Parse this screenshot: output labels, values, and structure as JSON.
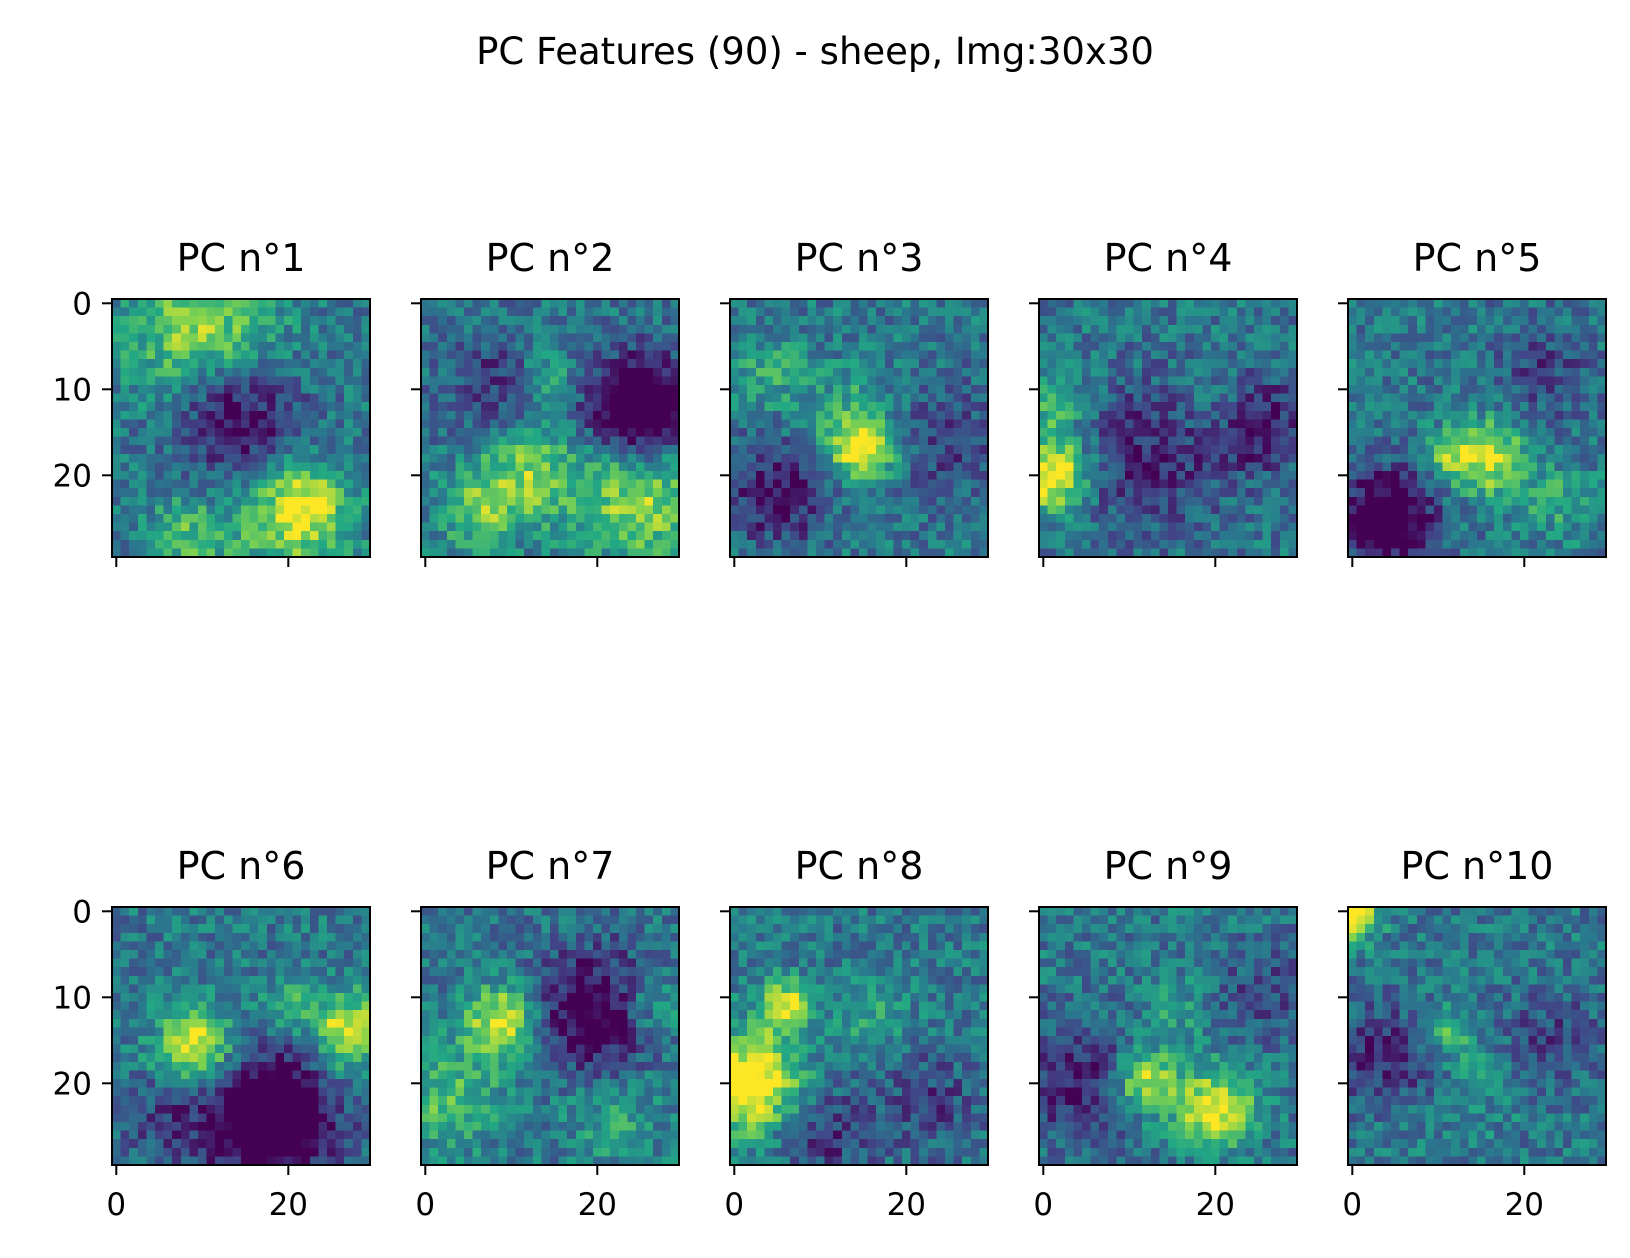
{
  "chart_data": {
    "type": "heatmap",
    "title": "PC Features (90) - sheep, Img:30x30",
    "grid": false,
    "colormap": "viridis",
    "colormap_stops": [
      "#440154",
      "#414487",
      "#2a788e",
      "#22a884",
      "#7ad151",
      "#fde725"
    ],
    "image_size": [
      30,
      30
    ],
    "layout": {
      "rows": 2,
      "cols": 5,
      "sharex": true,
      "sharey": true
    },
    "xlim": [
      -0.5,
      29.5
    ],
    "ylim": [
      29.5,
      -0.5
    ],
    "xticks": [
      0,
      20
    ],
    "yticks": [
      0,
      10,
      20
    ],
    "xtick_labels": [
      "0",
      "20"
    ],
    "ytick_labels": [
      "0",
      "10",
      "20"
    ],
    "panels": [
      {
        "title": "PC n°1",
        "blobs": [
          [
            10,
            3,
            6,
            0.45
          ],
          [
            14,
            13,
            5,
            -0.45
          ],
          [
            20,
            26,
            5,
            0.35
          ],
          [
            22,
            23,
            3,
            0.35
          ],
          [
            8,
            27,
            3,
            0.3
          ]
        ]
      },
      {
        "title": "PC n°2",
        "blobs": [
          [
            25,
            12,
            4,
            -0.8
          ],
          [
            25,
            23,
            5,
            0.45
          ],
          [
            12,
            20,
            4,
            0.4
          ],
          [
            6,
            24,
            3,
            0.35
          ],
          [
            14,
            9,
            2,
            0.3
          ],
          [
            8,
            10,
            4,
            -0.25
          ]
        ]
      },
      {
        "title": "PC n°3",
        "blobs": [
          [
            15,
            17,
            2.5,
            0.65
          ],
          [
            14,
            13,
            4,
            0.2
          ],
          [
            5,
            22,
            4,
            -0.4
          ],
          [
            24,
            16,
            5,
            -0.2
          ],
          [
            4,
            8,
            3,
            0.2
          ]
        ]
      },
      {
        "title": "PC n°4",
        "blobs": [
          [
            1,
            20,
            3,
            0.7
          ],
          [
            1,
            12,
            3,
            0.25
          ],
          [
            12,
            18,
            6,
            -0.3
          ],
          [
            25,
            14,
            4,
            -0.35
          ],
          [
            20,
            12,
            3,
            0.15
          ]
        ]
      },
      {
        "title": "PC n°5",
        "blobs": [
          [
            4,
            25,
            4,
            -0.6
          ],
          [
            16,
            18,
            3,
            0.55
          ],
          [
            11,
            18,
            2,
            0.3
          ],
          [
            22,
            8,
            4,
            -0.2
          ],
          [
            24,
            23,
            3,
            0.2
          ]
        ]
      },
      {
        "title": "PC n°6",
        "blobs": [
          [
            9,
            16,
            3,
            0.65
          ],
          [
            18,
            24,
            5,
            -0.8
          ],
          [
            27,
            14,
            3,
            0.6
          ],
          [
            20,
            11,
            2,
            0.3
          ],
          [
            6,
            24,
            4,
            -0.2
          ]
        ]
      },
      {
        "title": "PC n°7",
        "blobs": [
          [
            9,
            13,
            3,
            0.6
          ],
          [
            20,
            12,
            5,
            -0.55
          ],
          [
            3,
            22,
            4,
            0.3
          ],
          [
            22,
            23,
            4,
            0.2
          ],
          [
            26,
            11,
            3,
            0.3
          ]
        ]
      },
      {
        "title": "PC n°8",
        "blobs": [
          [
            2,
            20,
            4,
            0.75
          ],
          [
            6,
            11,
            2,
            0.6
          ],
          [
            23,
            22,
            4,
            -0.2
          ],
          [
            10,
            26,
            4,
            -0.25
          ],
          [
            16,
            12,
            3,
            0.2
          ]
        ]
      },
      {
        "title": "PC n°9",
        "blobs": [
          [
            12,
            20,
            2.5,
            0.55
          ],
          [
            20,
            23,
            3,
            0.65
          ],
          [
            4,
            20,
            5,
            -0.3
          ],
          [
            26,
            10,
            4,
            -0.2
          ],
          [
            15,
            12,
            3,
            0.15
          ]
        ]
      },
      {
        "title": "PC n°10",
        "blobs": [
          [
            0,
            0,
            2,
            0.8
          ],
          [
            11,
            14,
            2,
            0.3
          ],
          [
            4,
            17,
            4,
            -0.3
          ],
          [
            23,
            15,
            4,
            -0.2
          ],
          [
            15,
            20,
            4,
            0.1
          ]
        ]
      }
    ]
  }
}
